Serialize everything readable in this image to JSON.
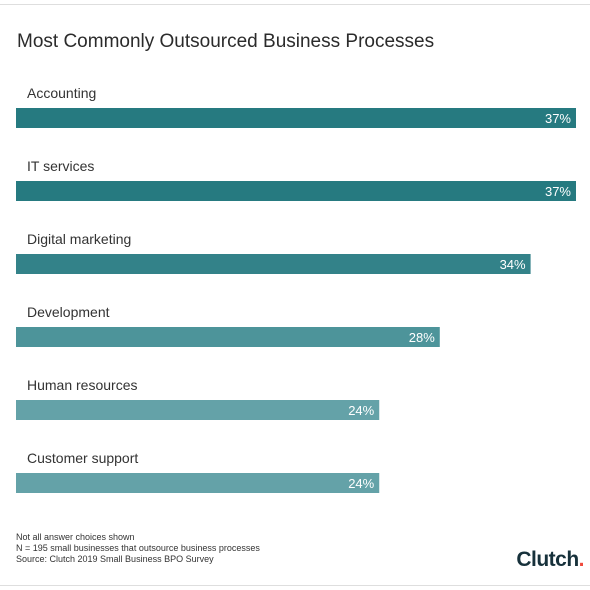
{
  "chart_data": {
    "type": "bar",
    "orientation": "horizontal",
    "title": "Most Commonly Outsourced Business Processes",
    "categories": [
      "Accounting",
      "IT services",
      "Digital marketing",
      "Development",
      "Human resources",
      "Customer support"
    ],
    "values": [
      37,
      37,
      34,
      28,
      24,
      24
    ],
    "value_labels": [
      "37%",
      "37%",
      "34%",
      "28%",
      "24%",
      "24%"
    ],
    "xlim": [
      0,
      37
    ],
    "grid": false,
    "legend": "none",
    "bar_colors": [
      "#267a80",
      "#267a80",
      "#338289",
      "#4d949a",
      "#64a2a8",
      "#64a2a8"
    ]
  },
  "footer": {
    "notes": [
      "Not all answer choices shown",
      "N = 195 small businesses that outsource business processes",
      "Source: Clutch 2019 Small Business BPO Survey"
    ],
    "logo_text": "Clutch"
  }
}
